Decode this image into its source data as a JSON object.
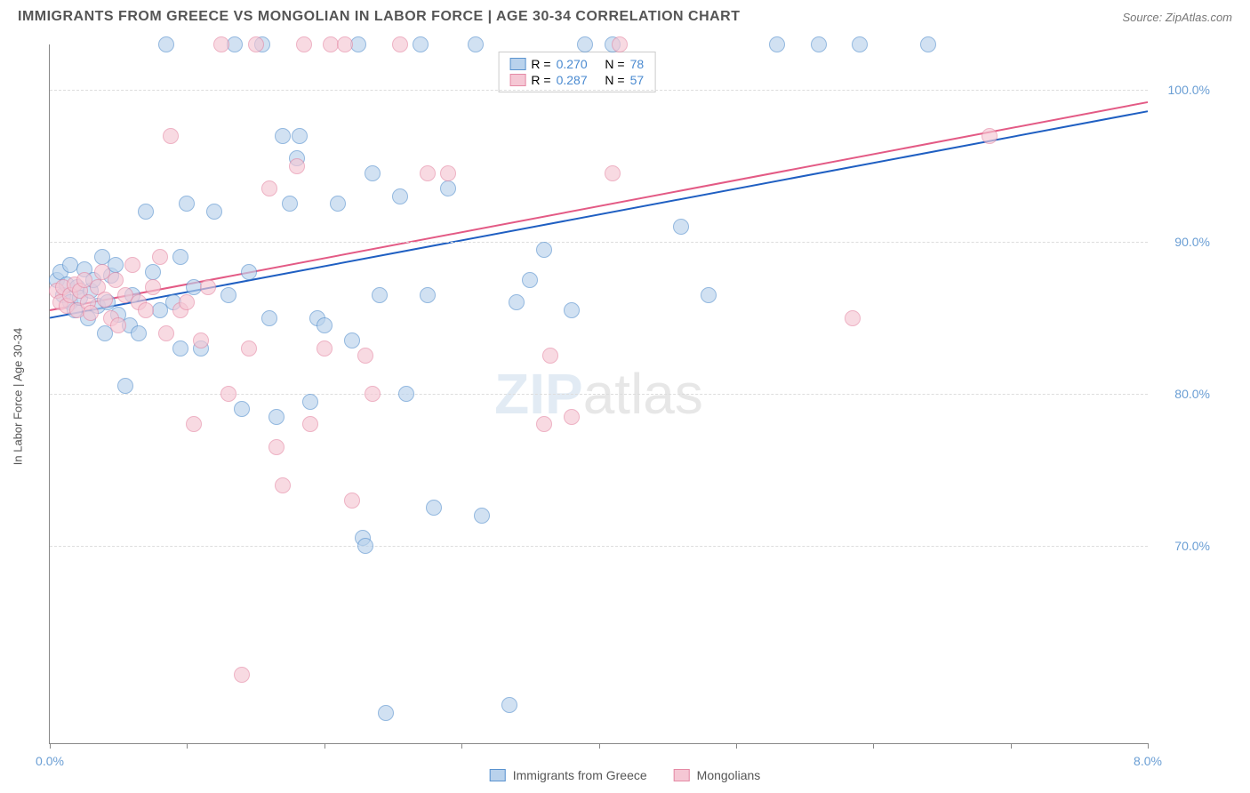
{
  "title": "IMMIGRANTS FROM GREECE VS MONGOLIAN IN LABOR FORCE | AGE 30-34 CORRELATION CHART",
  "source": "Source: ZipAtlas.com",
  "ylabel": "In Labor Force | Age 30-34",
  "watermark": {
    "zip": "ZIP",
    "atlas": "atlas"
  },
  "chart": {
    "type": "scatter",
    "background_color": "#ffffff",
    "grid_color": "#dddddd",
    "axis_color": "#888888",
    "xlim": [
      0.0,
      8.0
    ],
    "ylim": [
      57.0,
      103.0
    ],
    "xtick_positions": [
      0,
      1,
      2,
      3,
      4,
      5,
      6,
      7,
      8
    ],
    "xtick_labels_shown": {
      "0": "0.0%",
      "8": "8.0%"
    },
    "ytick_positions": [
      70,
      80,
      90,
      100
    ],
    "ytick_labels": [
      "70.0%",
      "80.0%",
      "90.0%",
      "100.0%"
    ],
    "marker_size": 18,
    "label_fontsize": 14,
    "title_fontsize": 16,
    "tick_label_color": "#6a9ed4",
    "series": [
      {
        "name": "Immigrants from Greece",
        "color_fill": "#b9d2ec",
        "color_stroke": "#5a93cf",
        "r_value": "0.270",
        "n_value": "78",
        "trendline": {
          "x1": 0.0,
          "y1": 85.0,
          "x2": 8.0,
          "y2": 98.6,
          "color": "#1f5fc2",
          "width": 2
        },
        "points": [
          [
            0.05,
            87.5
          ],
          [
            0.08,
            88.0
          ],
          [
            0.1,
            86.5
          ],
          [
            0.12,
            87.2
          ],
          [
            0.15,
            86.0
          ],
          [
            0.15,
            88.5
          ],
          [
            0.18,
            85.5
          ],
          [
            0.2,
            87.0
          ],
          [
            0.22,
            86.3
          ],
          [
            0.25,
            88.2
          ],
          [
            0.28,
            85.0
          ],
          [
            0.3,
            86.8
          ],
          [
            0.32,
            87.5
          ],
          [
            0.35,
            85.8
          ],
          [
            0.4,
            84.0
          ],
          [
            0.42,
            86.0
          ],
          [
            0.45,
            87.8
          ],
          [
            0.5,
            85.2
          ],
          [
            0.55,
            80.5
          ],
          [
            0.58,
            84.5
          ],
          [
            0.6,
            86.5
          ],
          [
            0.7,
            92.0
          ],
          [
            0.75,
            88.0
          ],
          [
            0.8,
            85.5
          ],
          [
            0.85,
            103.0
          ],
          [
            0.9,
            86.0
          ],
          [
            0.95,
            89.0
          ],
          [
            1.0,
            92.5
          ],
          [
            1.1,
            83.0
          ],
          [
            1.2,
            92.0
          ],
          [
            1.3,
            86.5
          ],
          [
            1.35,
            103.0
          ],
          [
            1.4,
            79.0
          ],
          [
            1.45,
            88.0
          ],
          [
            1.55,
            103.0
          ],
          [
            1.6,
            85.0
          ],
          [
            1.65,
            78.5
          ],
          [
            1.7,
            97.0
          ],
          [
            1.75,
            92.5
          ],
          [
            1.8,
            95.5
          ],
          [
            1.9,
            79.5
          ],
          [
            1.95,
            85.0
          ],
          [
            2.0,
            84.5
          ],
          [
            2.1,
            92.5
          ],
          [
            2.2,
            83.5
          ],
          [
            2.25,
            103.0
          ],
          [
            2.28,
            70.5
          ],
          [
            2.3,
            70.0
          ],
          [
            2.35,
            94.5
          ],
          [
            2.4,
            86.5
          ],
          [
            2.45,
            59.0
          ],
          [
            2.55,
            93.0
          ],
          [
            2.6,
            80.0
          ],
          [
            2.7,
            103.0
          ],
          [
            2.75,
            86.5
          ],
          [
            2.8,
            72.5
          ],
          [
            2.9,
            93.5
          ],
          [
            3.1,
            103.0
          ],
          [
            3.15,
            72.0
          ],
          [
            3.35,
            59.5
          ],
          [
            3.4,
            86.0
          ],
          [
            3.5,
            87.5
          ],
          [
            3.6,
            89.5
          ],
          [
            3.8,
            85.5
          ],
          [
            3.9,
            103.0
          ],
          [
            4.1,
            103.0
          ],
          [
            4.6,
            91.0
          ],
          [
            4.8,
            86.5
          ],
          [
            5.3,
            103.0
          ],
          [
            5.6,
            103.0
          ],
          [
            5.9,
            103.0
          ],
          [
            6.4,
            103.0
          ],
          [
            1.82,
            97.0
          ],
          [
            0.65,
            84.0
          ],
          [
            0.95,
            83.0
          ],
          [
            1.05,
            87.0
          ],
          [
            0.38,
            89.0
          ],
          [
            0.48,
            88.5
          ]
        ]
      },
      {
        "name": "Mongolians",
        "color_fill": "#f5c7d4",
        "color_stroke": "#e58aa5",
        "r_value": "0.287",
        "n_value": "57",
        "trendline": {
          "x1": 0.0,
          "y1": 85.5,
          "x2": 8.0,
          "y2": 99.2,
          "color": "#e35a85",
          "width": 2
        },
        "points": [
          [
            0.05,
            86.8
          ],
          [
            0.08,
            86.0
          ],
          [
            0.1,
            87.0
          ],
          [
            0.12,
            85.8
          ],
          [
            0.15,
            86.5
          ],
          [
            0.18,
            87.2
          ],
          [
            0.2,
            85.5
          ],
          [
            0.22,
            86.8
          ],
          [
            0.25,
            87.5
          ],
          [
            0.28,
            86.0
          ],
          [
            0.3,
            85.3
          ],
          [
            0.35,
            87.0
          ],
          [
            0.38,
            88.0
          ],
          [
            0.4,
            86.2
          ],
          [
            0.45,
            85.0
          ],
          [
            0.48,
            87.5
          ],
          [
            0.5,
            84.5
          ],
          [
            0.55,
            86.5
          ],
          [
            0.6,
            88.5
          ],
          [
            0.65,
            86.0
          ],
          [
            0.7,
            85.5
          ],
          [
            0.75,
            87.0
          ],
          [
            0.8,
            89.0
          ],
          [
            0.85,
            84.0
          ],
          [
            0.88,
            97.0
          ],
          [
            0.95,
            85.5
          ],
          [
            1.0,
            86.0
          ],
          [
            1.05,
            78.0
          ],
          [
            1.1,
            83.5
          ],
          [
            1.15,
            87.0
          ],
          [
            1.25,
            103.0
          ],
          [
            1.3,
            80.0
          ],
          [
            1.4,
            61.5
          ],
          [
            1.45,
            83.0
          ],
          [
            1.5,
            103.0
          ],
          [
            1.6,
            93.5
          ],
          [
            1.65,
            76.5
          ],
          [
            1.7,
            74.0
          ],
          [
            1.8,
            95.0
          ],
          [
            1.85,
            103.0
          ],
          [
            1.9,
            78.0
          ],
          [
            2.0,
            83.0
          ],
          [
            2.05,
            103.0
          ],
          [
            2.15,
            103.0
          ],
          [
            2.2,
            73.0
          ],
          [
            2.3,
            82.5
          ],
          [
            2.35,
            80.0
          ],
          [
            2.55,
            103.0
          ],
          [
            2.75,
            94.5
          ],
          [
            2.9,
            94.5
          ],
          [
            3.6,
            78.0
          ],
          [
            3.65,
            82.5
          ],
          [
            3.8,
            78.5
          ],
          [
            4.1,
            94.5
          ],
          [
            4.15,
            103.0
          ],
          [
            5.85,
            85.0
          ],
          [
            6.85,
            97.0
          ]
        ]
      }
    ]
  },
  "legend_top": {
    "r_label": "R =",
    "n_label": "N ="
  },
  "legend_bottom": {
    "series1_label": "Immigrants from Greece",
    "series2_label": "Mongolians"
  }
}
